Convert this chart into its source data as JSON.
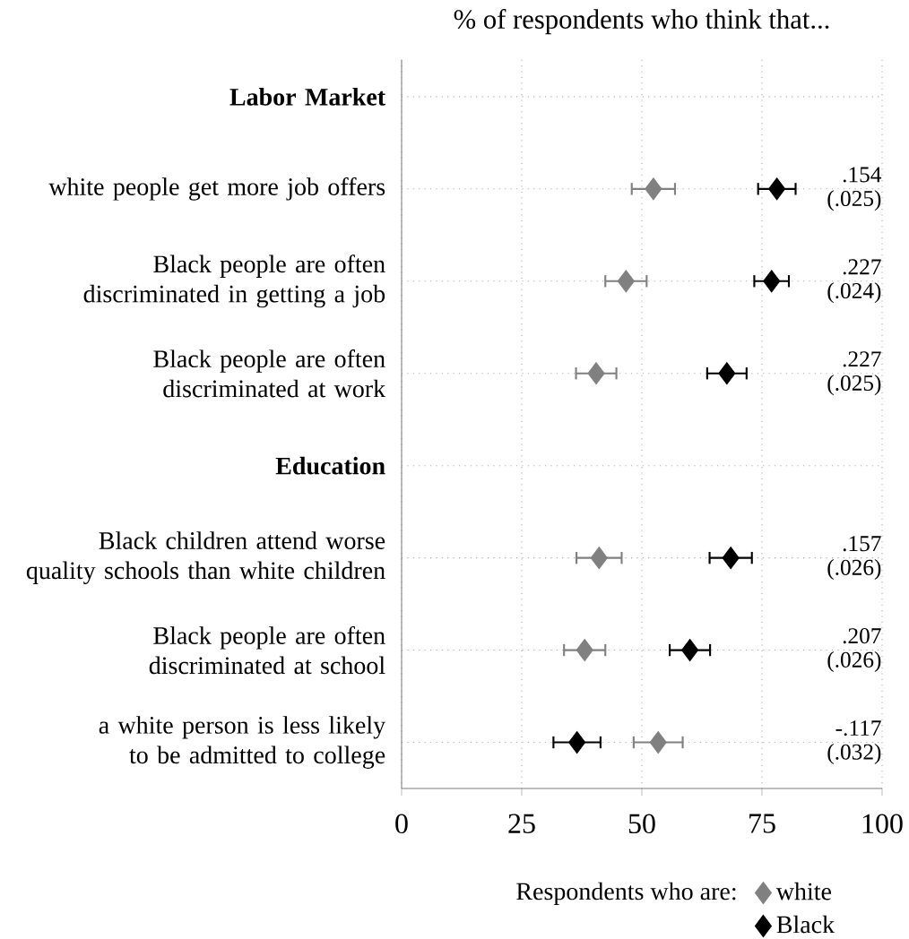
{
  "chart_data": {
    "type": "scatter",
    "orientation": "horizontal",
    "title": "% of respondents who think that...",
    "categories": [
      "Labor Market",
      "white people get more job offers",
      "Black people are often discriminated in getting a job",
      "Black people are often discriminated at work",
      "Education",
      "Black children attend worse quality schools than white children",
      "Black people are often discriminated at school",
      "a white person is less likely to be admitted to college"
    ],
    "series": [
      {
        "name": "white",
        "color": "#808080",
        "values": [
          null,
          52.4,
          46.7,
          40.5,
          null,
          41.1,
          38.1,
          53.4
        ],
        "errors": [
          null,
          4.5,
          4.3,
          4.2,
          null,
          4.7,
          4.3,
          5.1
        ]
      },
      {
        "name": "Black",
        "color": "#000000",
        "values": [
          null,
          78.1,
          77.0,
          67.7,
          null,
          68.5,
          60.0,
          36.5
        ],
        "errors": [
          null,
          3.9,
          3.6,
          4.1,
          null,
          4.4,
          4.2,
          4.9
        ]
      }
    ],
    "xlim": [
      0,
      100
    ],
    "xticks": [
      0,
      25,
      50,
      75,
      100
    ],
    "grid": true,
    "marker": "diamond",
    "legend": "bottom",
    "legend_title": "Respondents who are:",
    "annotations": [
      ".154 (.025)",
      ".227 (.024)",
      ".227 (.025)",
      ".157 (.026)",
      ".207 (.026)",
      "-.117 (.032)"
    ]
  }
}
